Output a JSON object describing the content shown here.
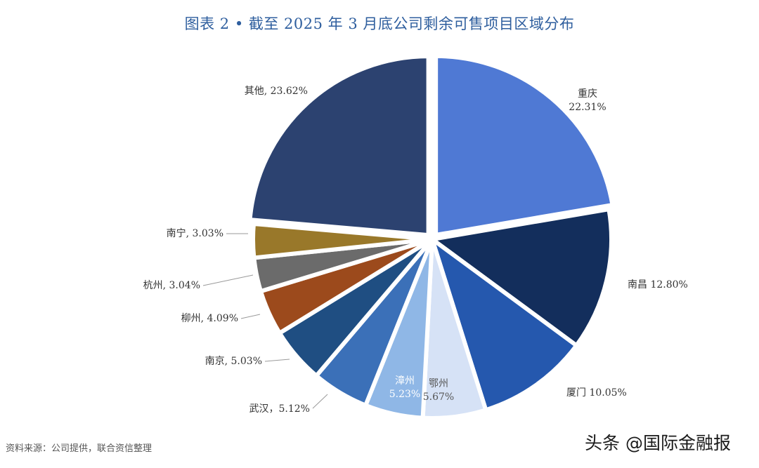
{
  "title": "图表 2 •  截至 2025 年 3 月底公司剩余可售项目区域分布",
  "source": "资料来源：公司提供，联合资信整理",
  "watermark": "头条 @国际金融报",
  "chart_data": {
    "type": "pie",
    "title": "图表 2 •  截至 2025 年 3 月底公司剩余可售项目区域分布",
    "slices": [
      {
        "name": "重庆",
        "value": 22.31,
        "label_lines": [
          "重庆",
          "22.31%"
        ],
        "color": "#4f79d4"
      },
      {
        "name": "南昌",
        "value": 12.8,
        "label_lines": [
          "南昌 12.80%"
        ],
        "color": "#132e5c"
      },
      {
        "name": "厦门",
        "value": 10.05,
        "label_lines": [
          "厦门 10.05%"
        ],
        "color": "#2558ae"
      },
      {
        "name": "鄂州",
        "value": 5.67,
        "label_lines": [
          "鄂州",
          "5.67%"
        ],
        "color": "#d6e2f6"
      },
      {
        "name": "漳州",
        "value": 5.23,
        "label_lines": [
          "漳州",
          "5.23%"
        ],
        "color": "#8fb7e6"
      },
      {
        "name": "武汉",
        "value": 5.12,
        "label_lines": [
          "武汉，5.12%"
        ],
        "color": "#3b70b8"
      },
      {
        "name": "南京",
        "value": 5.03,
        "label_lines": [
          "南京, 5.03%"
        ],
        "color": "#1f4e82"
      },
      {
        "name": "柳州",
        "value": 4.09,
        "label_lines": [
          "柳州, 4.09%"
        ],
        "color": "#9c4a1c"
      },
      {
        "name": "杭州",
        "value": 3.04,
        "label_lines": [
          "杭州, 3.04%"
        ],
        "color": "#6b6b6b"
      },
      {
        "name": "南宁",
        "value": 3.03,
        "label_lines": [
          "南宁, 3.03%"
        ],
        "color": "#99782a"
      },
      {
        "name": "其他",
        "value": 23.62,
        "label_lines": [
          "其他, 23.62%"
        ],
        "color": "#2c4270"
      }
    ]
  }
}
